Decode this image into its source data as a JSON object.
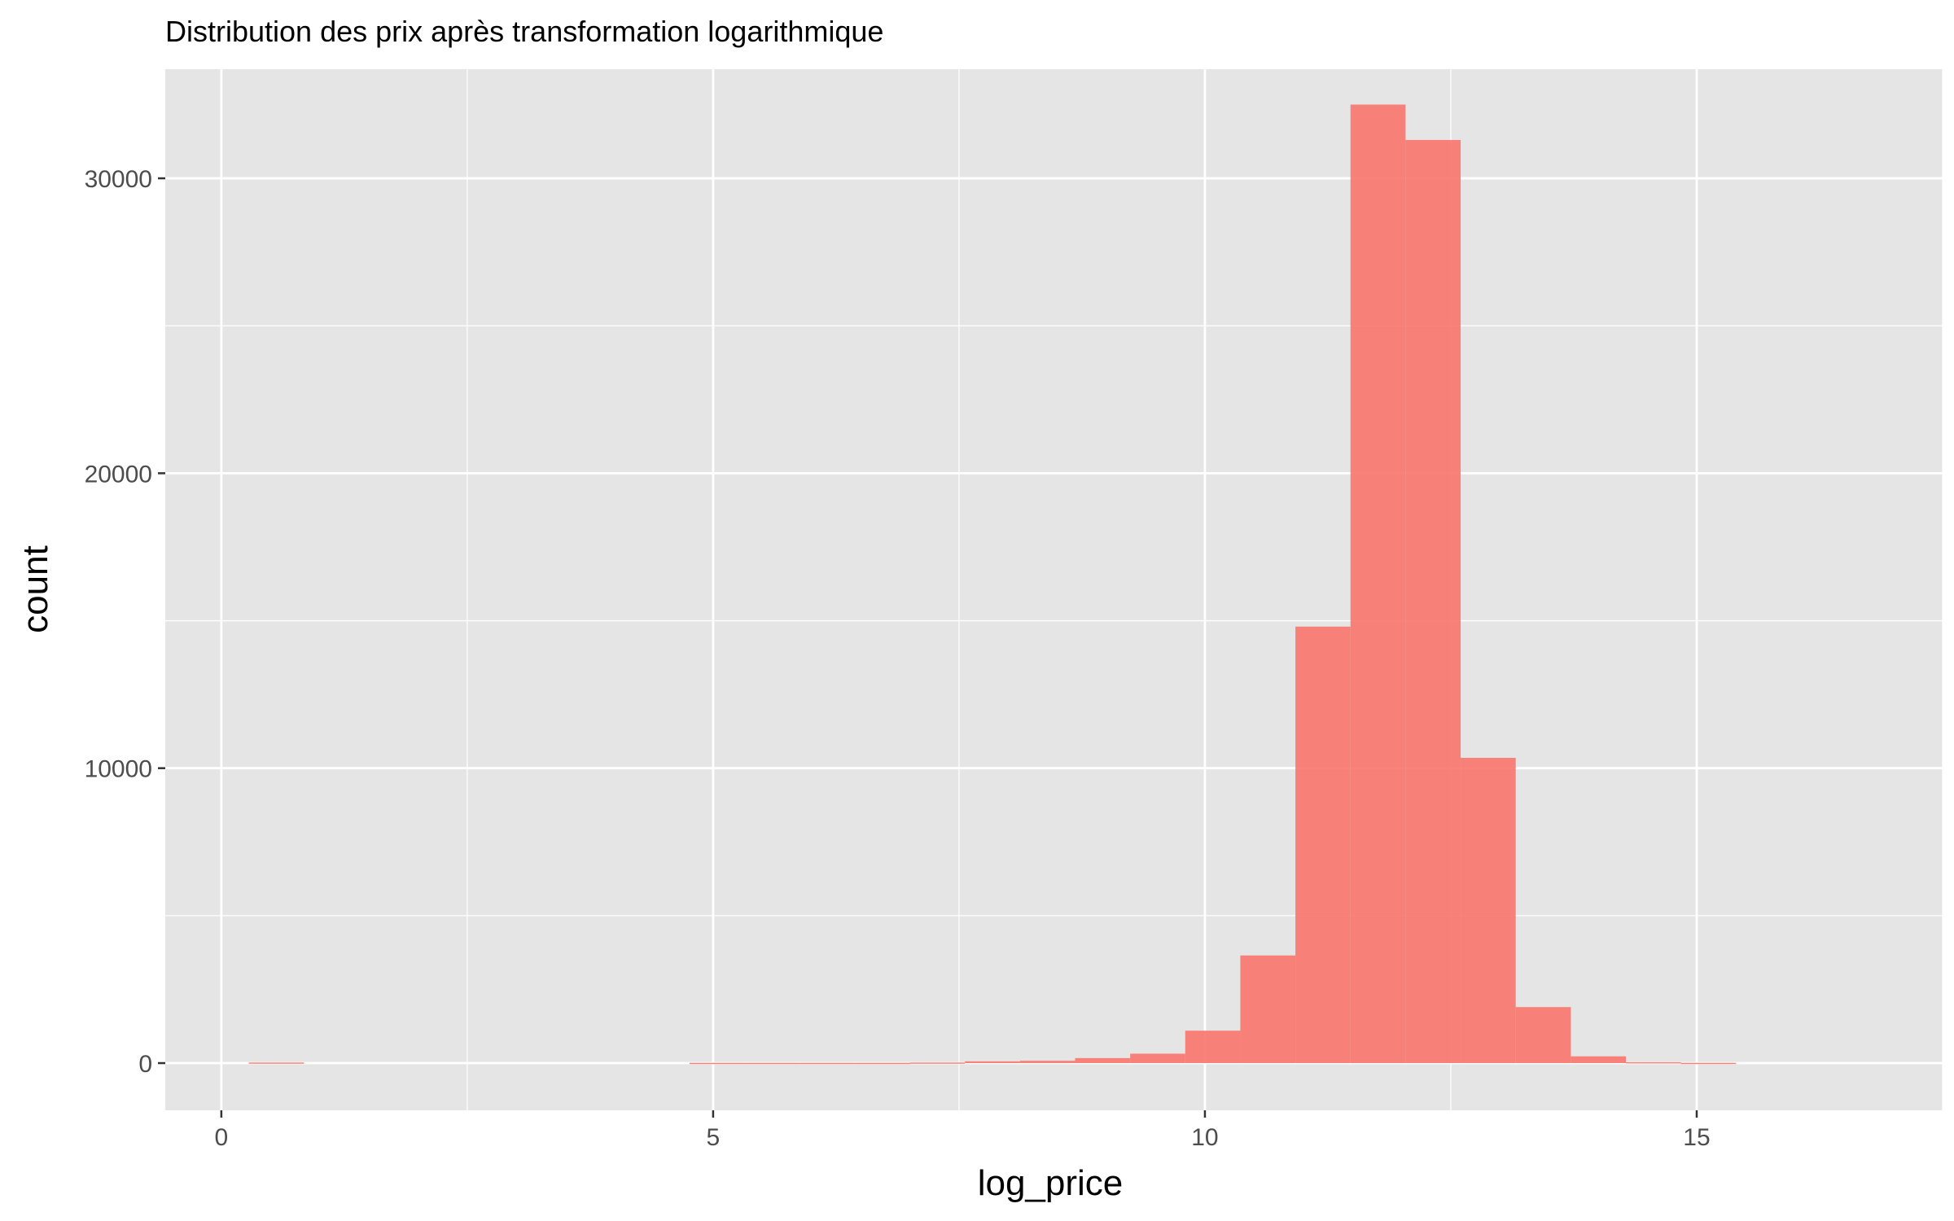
{
  "chart_data": {
    "type": "bar",
    "title": "Distribution des prix après transformation logarithmique",
    "xlabel": "log_price",
    "ylabel": "count",
    "xlim": [
      -0.57,
      17.5
    ],
    "ylim": [
      -1600,
      33700
    ],
    "x_ticks": [
      0,
      5,
      10,
      15
    ],
    "x_tick_labels": [
      "0",
      "5",
      "10",
      "15"
    ],
    "y_ticks": [
      0,
      10000,
      20000,
      30000
    ],
    "y_tick_labels": [
      "0",
      "10000",
      "20000",
      "30000"
    ],
    "grid": true,
    "bin_width": 0.56,
    "bins": [
      {
        "x0": 0.28,
        "x1": 0.84,
        "count": 20
      },
      {
        "x0": 4.76,
        "x1": 5.32,
        "count": 10
      },
      {
        "x0": 5.32,
        "x1": 5.88,
        "count": 10
      },
      {
        "x0": 5.88,
        "x1": 6.44,
        "count": 10
      },
      {
        "x0": 6.44,
        "x1": 7.0,
        "count": 10
      },
      {
        "x0": 7.0,
        "x1": 7.56,
        "count": 20
      },
      {
        "x0": 7.56,
        "x1": 8.12,
        "count": 60
      },
      {
        "x0": 8.12,
        "x1": 8.68,
        "count": 80
      },
      {
        "x0": 8.68,
        "x1": 9.24,
        "count": 170
      },
      {
        "x0": 9.24,
        "x1": 9.8,
        "count": 320
      },
      {
        "x0": 9.8,
        "x1": 10.36,
        "count": 1100
      },
      {
        "x0": 10.36,
        "x1": 10.92,
        "count": 3650
      },
      {
        "x0": 10.92,
        "x1": 11.48,
        "count": 14800
      },
      {
        "x0": 11.48,
        "x1": 12.04,
        "count": 32500
      },
      {
        "x0": 12.04,
        "x1": 12.6,
        "count": 31300
      },
      {
        "x0": 12.6,
        "x1": 13.16,
        "count": 10350
      },
      {
        "x0": 13.16,
        "x1": 13.72,
        "count": 1900
      },
      {
        "x0": 13.72,
        "x1": 14.28,
        "count": 230
      },
      {
        "x0": 14.28,
        "x1": 14.84,
        "count": 30
      },
      {
        "x0": 14.84,
        "x1": 15.4,
        "count": 10
      }
    ],
    "colors": {
      "bar": "#f8766d",
      "bar_opacity": 0.9,
      "panel_background": "#e5e5e5",
      "grid_major": "#ffffff",
      "tick": "#333333"
    }
  }
}
